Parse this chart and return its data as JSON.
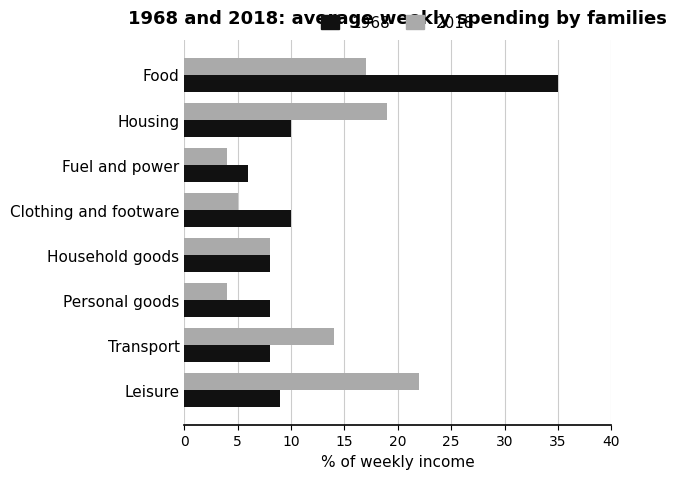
{
  "title": "1968 and 2018: average weekly spending by families",
  "xlabel": "% of weekly income",
  "categories": [
    "Food",
    "Housing",
    "Fuel and power",
    "Clothing and footware",
    "Household goods",
    "Personal goods",
    "Transport",
    "Leisure"
  ],
  "values_1968": [
    35,
    10,
    6,
    10,
    8,
    8,
    8,
    9
  ],
  "values_2018": [
    17,
    19,
    4,
    5,
    8,
    4,
    14,
    22
  ],
  "color_1968": "#111111",
  "color_2018": "#aaaaaa",
  "xlim": [
    0,
    40
  ],
  "xticks": [
    0,
    5,
    10,
    15,
    20,
    25,
    30,
    35,
    40
  ],
  "legend_labels": [
    "1968",
    "2018"
  ],
  "bar_height": 0.38,
  "grid_color": "#cccccc",
  "background_color": "#ffffff",
  "title_fontsize": 13,
  "label_fontsize": 11,
  "tick_fontsize": 10
}
